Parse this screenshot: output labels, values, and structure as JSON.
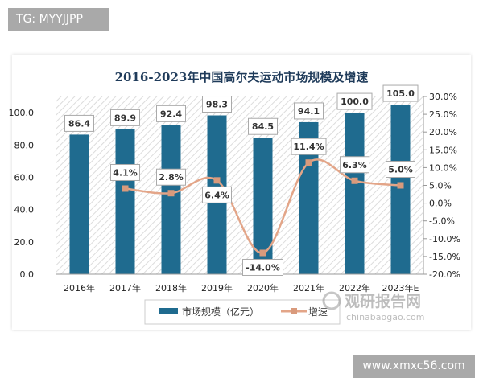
{
  "watermark_top": "TG: MYYJJPP",
  "watermark_bottom": "www.xmxc56.com",
  "source_logo": {
    "name": "观研报告网",
    "url_text": "chinabaogao.com"
  },
  "chart_data": {
    "type": "bar+line",
    "title": "2016-2023年中国高尔夫运动市场规模及增速",
    "categories": [
      "2016年",
      "2017年",
      "2018年",
      "2019年",
      "2020年",
      "2021年",
      "2022年",
      "2023年E"
    ],
    "series": [
      {
        "name": "市场规模（亿元）",
        "type": "bar",
        "axis": "left",
        "values": [
          86.4,
          89.9,
          92.4,
          98.3,
          84.5,
          94.1,
          100.0,
          105.0
        ],
        "labels": [
          "86.4",
          "89.9",
          "92.4",
          "98.3",
          "84.5",
          "94.1",
          "100.0",
          "105.0"
        ],
        "color": "#1f6b8f"
      },
      {
        "name": "增速",
        "type": "line",
        "axis": "right",
        "values": [
          null,
          4.1,
          2.8,
          6.4,
          -14.0,
          11.4,
          6.3,
          5.0
        ],
        "labels": [
          "",
          "4.1%",
          "2.8%",
          "6.4%",
          "-14.0%",
          "11.4%",
          "6.3%",
          "5.0%"
        ],
        "color": "#e3a588"
      }
    ],
    "y_left": {
      "ylim": [
        0,
        110
      ],
      "ticks": [
        "0.0",
        "20.0",
        "40.0",
        "60.0",
        "80.0",
        "100.0"
      ],
      "tick_values": [
        0,
        20,
        40,
        60,
        80,
        100
      ]
    },
    "y_right": {
      "ylim": [
        -20,
        30
      ],
      "ticks": [
        "-20.0%",
        "-15.0%",
        "-10.0%",
        "-5.0%",
        "0.0%",
        "5.0%",
        "10.0%",
        "15.0%",
        "20.0%",
        "25.0%",
        "30.0%"
      ],
      "tick_values": [
        -20,
        -15,
        -10,
        -5,
        0,
        5,
        10,
        15,
        20,
        25,
        30
      ]
    },
    "legend": "bottom",
    "grid": false
  }
}
